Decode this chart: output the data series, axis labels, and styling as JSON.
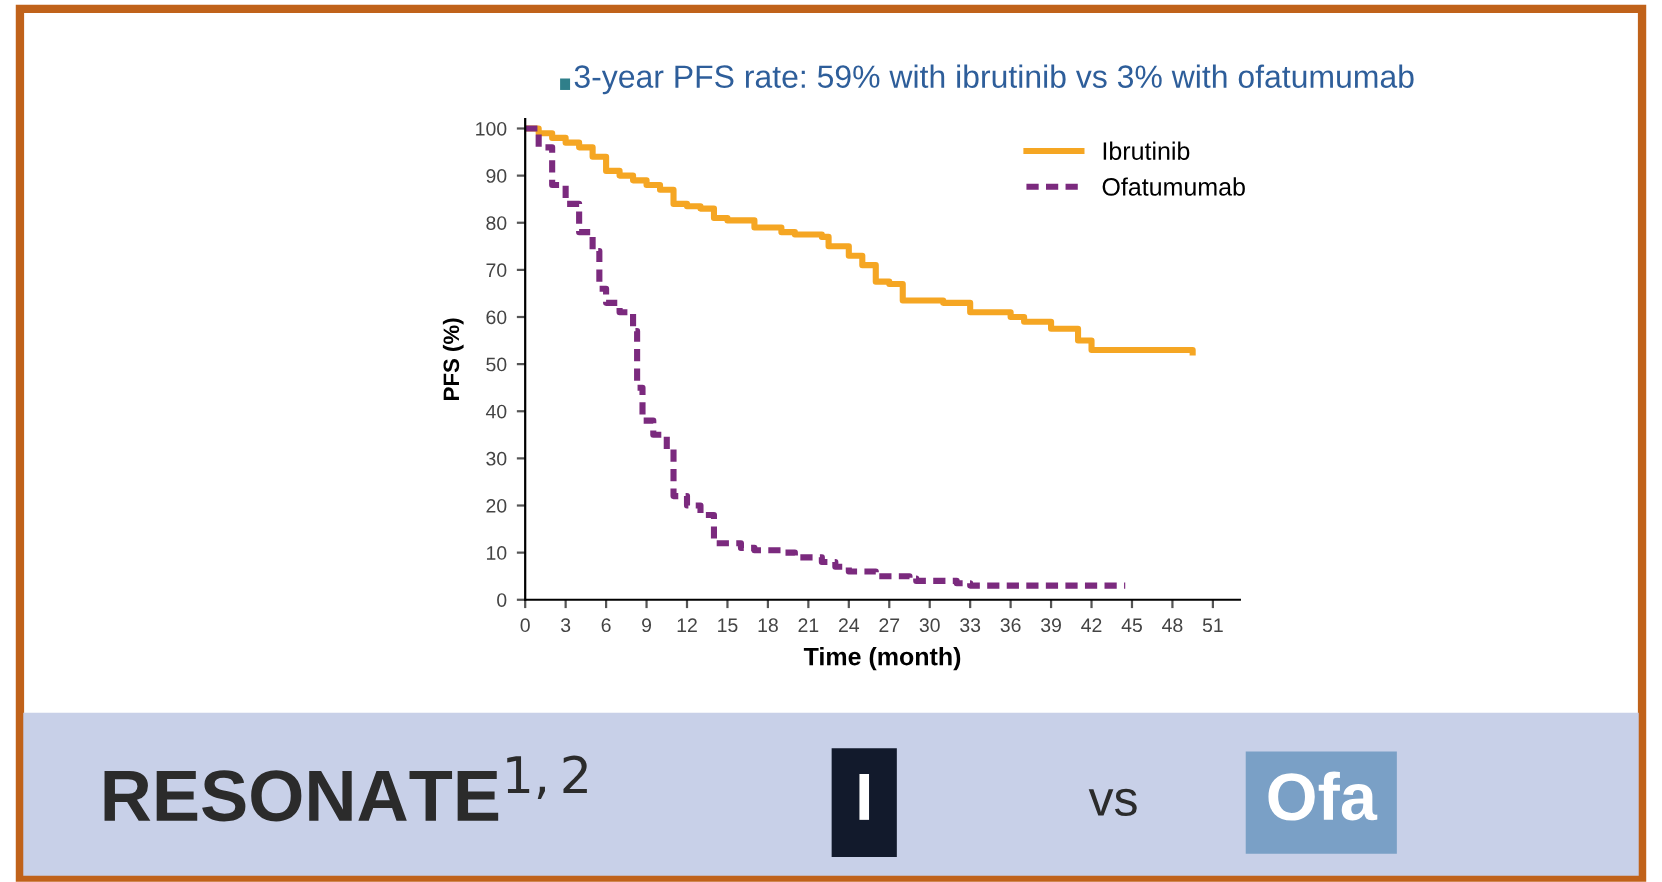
{
  "chart_data": {
    "type": "step",
    "title": "3-year PFS rate: 59% with ibrutinib vs 3% with ofatumumab",
    "xlabel": "Time (month)",
    "ylabel": "PFS (%)",
    "xlim": [
      0,
      53
    ],
    "ylim": [
      0,
      102
    ],
    "xticks": [
      0,
      3,
      6,
      9,
      12,
      15,
      18,
      21,
      24,
      27,
      30,
      33,
      36,
      39,
      42,
      45,
      48,
      51
    ],
    "yticks": [
      0,
      10,
      20,
      30,
      40,
      50,
      60,
      70,
      80,
      90,
      100
    ],
    "grid": false,
    "legend": "top right",
    "series": [
      {
        "name": "Ibrutinib",
        "color": "#f5a623",
        "line_style": "solid",
        "x": [
          0,
          1,
          2,
          3,
          4,
          5,
          6,
          7,
          8,
          9,
          10,
          11,
          12,
          13,
          14,
          15,
          17,
          19,
          20,
          22,
          22.5,
          24,
          25,
          26,
          27,
          28,
          31,
          33,
          36,
          37,
          39,
          41,
          42,
          49.5
        ],
        "values": [
          100,
          99,
          98,
          97,
          96,
          94,
          91,
          90,
          89,
          88,
          87,
          84,
          83.5,
          83,
          81,
          80.5,
          79,
          78,
          77.5,
          77,
          75,
          73,
          71,
          67.5,
          67,
          63.5,
          63,
          61,
          60,
          59,
          57.5,
          55,
          53,
          52.5
        ]
      },
      {
        "name": "Ofatumumab",
        "color": "#7b2a7e",
        "line_style": "dashed",
        "x": [
          0,
          1,
          2,
          3,
          4,
          5,
          5.5,
          6,
          7,
          8,
          8.3,
          8.7,
          9.5,
          10.5,
          11,
          12,
          13,
          14,
          16,
          17,
          19,
          20,
          22,
          23,
          24,
          26,
          28.5,
          29,
          32,
          33,
          44.5
        ],
        "values": [
          100,
          96,
          88,
          84,
          78,
          74,
          66,
          63,
          61,
          57,
          45,
          38,
          35,
          32,
          22,
          20,
          18,
          12,
          11,
          10.5,
          10,
          9,
          8,
          7,
          6,
          5,
          4.5,
          4,
          3.5,
          3,
          3
        ]
      }
    ],
    "annotations": [
      "RESONATE$^{1,2}$",
      "I",
      "vs",
      "Ofa"
    ]
  }
}
